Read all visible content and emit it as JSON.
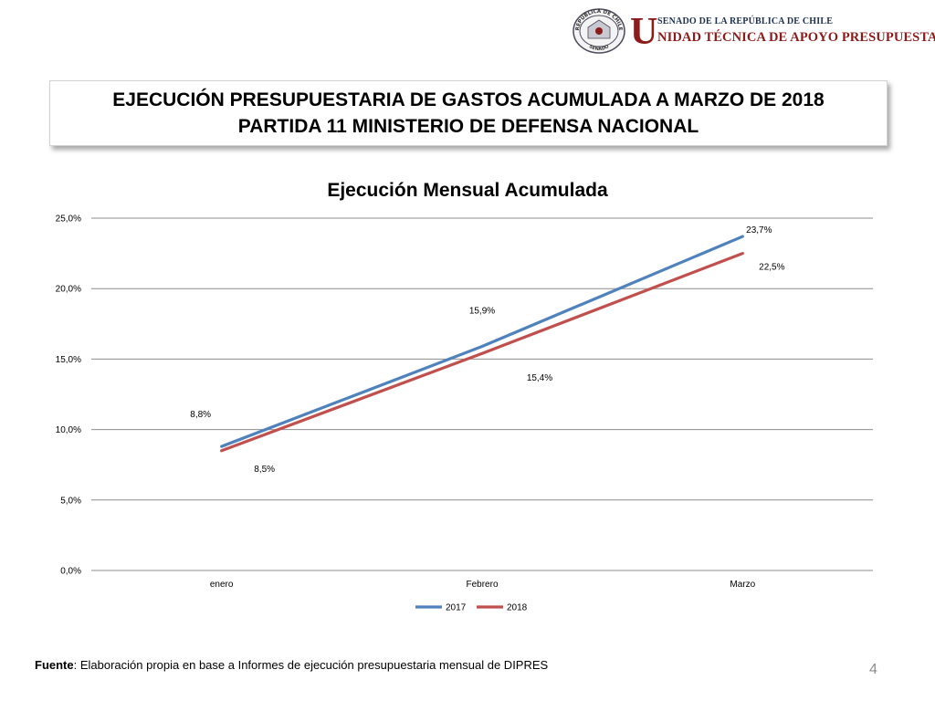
{
  "header": {
    "seal_top_text": "REPÚBLICA DE CHILE",
    "seal_bottom_text": "SENADO",
    "u_letter": "U",
    "senado_text": "SENADO DE LA REPÚBLICA DE CHILE",
    "unidad_text": "NIDAD TÉCNICA DE APOYO PRESUPUESTARIO"
  },
  "title": {
    "line1": "EJECUCIÓN PRESUPUESTARIA DE GASTOS ACUMULADA A MARZO DE 2018",
    "line2": "PARTIDA 11 MINISTERIO DE DEFENSA NACIONAL"
  },
  "chart_data": {
    "type": "line",
    "title": "Ejecución Mensual Acumulada",
    "categories": [
      "enero",
      "Febrero",
      "Marzo"
    ],
    "series": [
      {
        "name": "2017",
        "values": [
          8.8,
          15.9,
          23.7
        ],
        "labels": [
          "8,8%",
          "15,9%",
          "23,7%"
        ],
        "color": "#4f81bd"
      },
      {
        "name": "2018",
        "values": [
          8.5,
          15.4,
          22.5
        ],
        "labels": [
          "8,5%",
          "15,4%",
          "22,5%"
        ],
        "color": "#c0504d"
      }
    ],
    "ylim": [
      0,
      25
    ],
    "yticks": [
      0,
      5,
      10,
      15,
      20,
      25
    ],
    "ytick_labels": [
      "0,0%",
      "5,0%",
      "10,0%",
      "15,0%",
      "20,0%",
      "25,0%"
    ],
    "grid": true,
    "legend": "bottom"
  },
  "footer": {
    "source_label": "Fuente",
    "source_text": ": Elaboración propia en base  a Informes de ejecución presupuestaria mensual de DIPRES",
    "page_number": "4"
  }
}
